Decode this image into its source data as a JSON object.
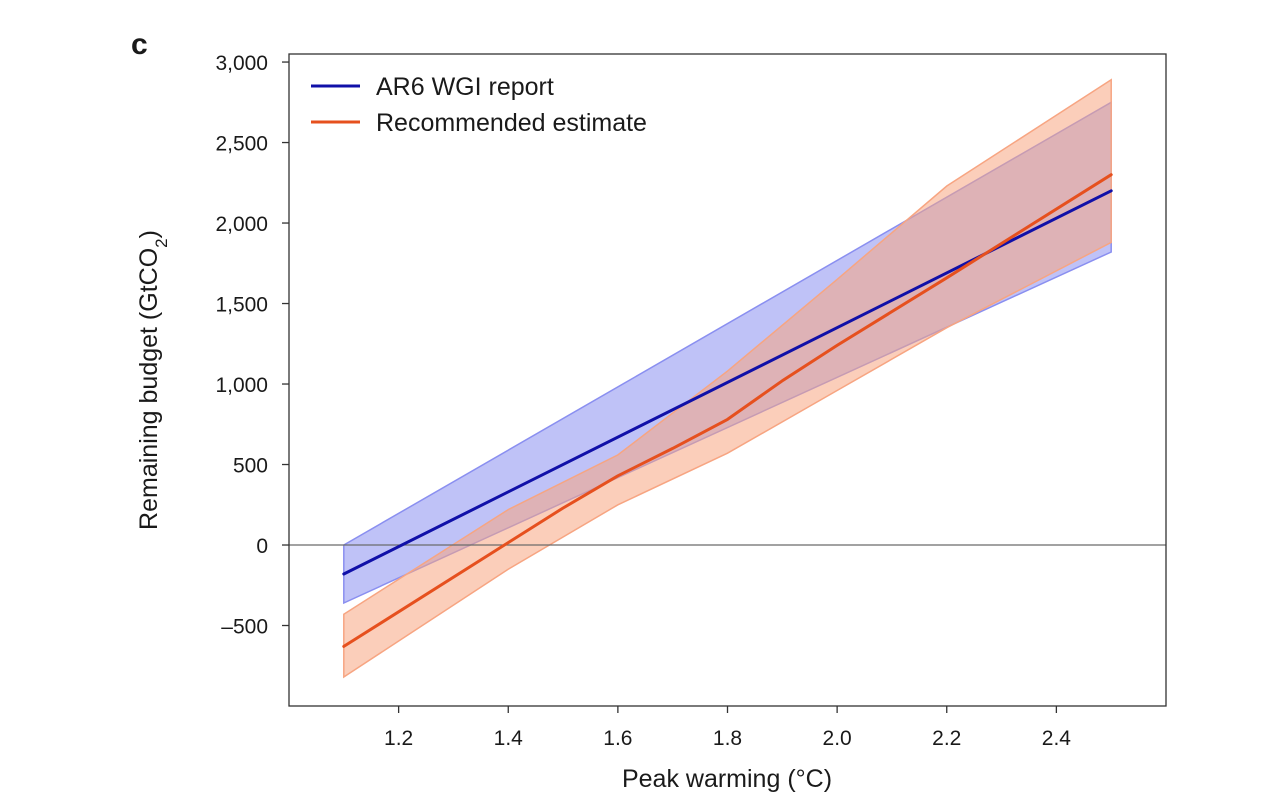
{
  "panel_label": "c",
  "chart_data": {
    "type": "line",
    "title": "",
    "xlabel": "Peak warming (°C)",
    "ylabel_main": "Remaining budget (GtCO",
    "ylabel_sub": "2",
    "ylabel_end": ")",
    "xlim": [
      1.0,
      2.6
    ],
    "ylim": [
      -1000,
      3050
    ],
    "xticks": [
      1.2,
      1.4,
      1.6,
      1.8,
      2.0,
      2.2,
      2.4
    ],
    "xtick_labels": [
      "1.2",
      "1.4",
      "1.6",
      "1.8",
      "2.0",
      "2.2",
      "2.4"
    ],
    "yticks": [
      -500,
      0,
      500,
      1000,
      1500,
      2000,
      2500,
      3000
    ],
    "ytick_labels": [
      "–500",
      "0",
      "500",
      "1,000",
      "1,500",
      "2,000",
      "2,500",
      "3,000"
    ],
    "zero_line": true,
    "grid": false,
    "legend_position": "top-left",
    "series": [
      {
        "name": "AR6 WGI report",
        "color": "#1010a8",
        "band_color": "#8a8ff0",
        "x": [
          1.1,
          2.5
        ],
        "values": [
          -180,
          2200
        ],
        "band_x": [
          1.1,
          2.5
        ],
        "band_lower": [
          -360,
          1820
        ],
        "band_upper": [
          0,
          2750
        ]
      },
      {
        "name": "Recommended estimate",
        "color": "#e6501e",
        "band_color": "#f7a582",
        "x": [
          1.1,
          1.5,
          1.6,
          1.7,
          1.8,
          1.9,
          2.0,
          2.2,
          2.5
        ],
        "values": [
          -630,
          230,
          430,
          600,
          780,
          1020,
          1240,
          1660,
          2300
        ],
        "band_x": [
          1.1,
          1.4,
          1.6,
          1.8,
          2.0,
          2.2,
          2.5
        ],
        "band_lower": [
          -820,
          -150,
          250,
          570,
          960,
          1350,
          1880
        ],
        "band_upper": [
          -430,
          220,
          560,
          1080,
          1650,
          2230,
          2890
        ]
      }
    ]
  }
}
